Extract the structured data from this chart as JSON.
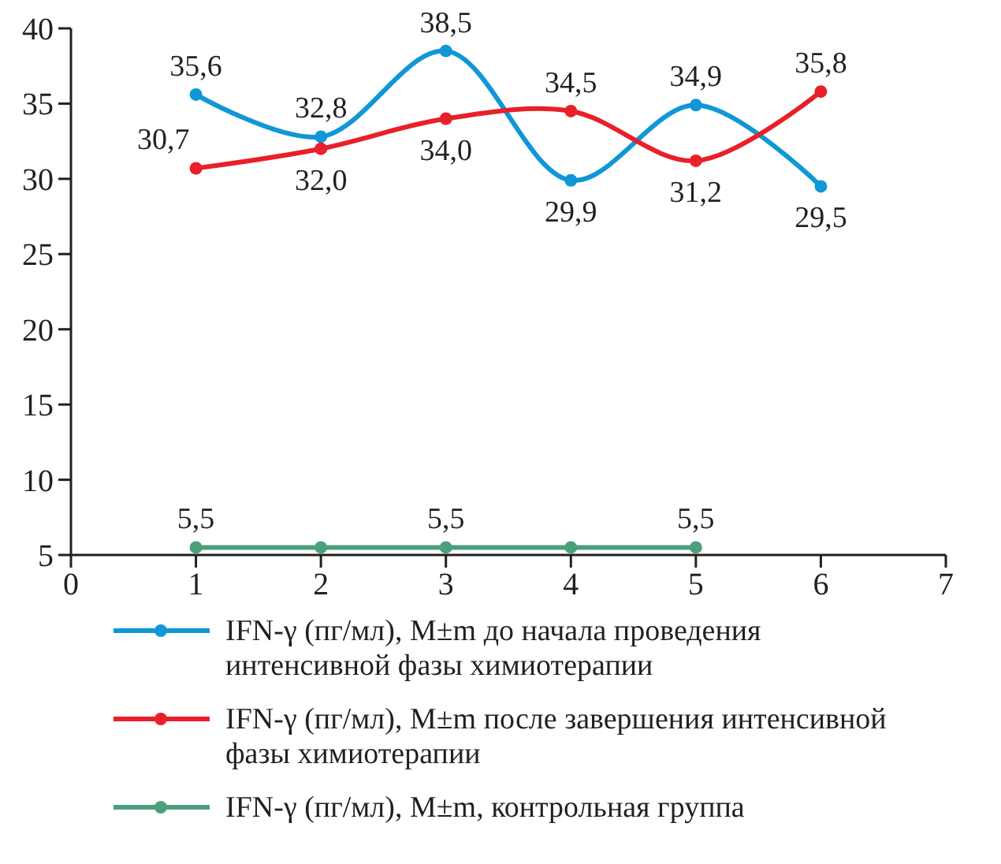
{
  "chart_data": {
    "type": "line",
    "x": [
      1,
      2,
      3,
      4,
      5,
      6
    ],
    "xlim": [
      0,
      7
    ],
    "xticks": [
      0,
      1,
      2,
      3,
      4,
      5,
      6,
      7
    ],
    "ylim": [
      5,
      40
    ],
    "yticks": [
      5,
      10,
      15,
      20,
      25,
      30,
      35,
      40
    ],
    "grid": false,
    "legend": "bottom",
    "marker": "circle",
    "line_style": "solid",
    "series": [
      {
        "name": "IFN-γ (пг/мл), M±m до начала проведения интенсивной фазы химиотерапии",
        "color": "#0f97d8",
        "values": [
          35.6,
          32.8,
          38.5,
          29.9,
          34.9,
          29.5
        ],
        "value_labels": [
          "35,6",
          "32,8",
          "38,5",
          "29,9",
          "34,9",
          "29,5"
        ]
      },
      {
        "name": "IFN-γ (пг/мл), M±m после завершения интенсивной фазы химиотерапии",
        "color": "#e8202a",
        "values": [
          30.7,
          32.0,
          34.0,
          34.5,
          31.2,
          35.8
        ],
        "value_labels": [
          "30,7",
          "32,0",
          "34,0",
          "34,5",
          "31,2",
          "35,8"
        ]
      },
      {
        "name": "IFN-γ (пг/мл), M±m, контрольная группа",
        "color": "#4c9f7d",
        "values": [
          5.5,
          5.5,
          5.5,
          5.5,
          5.5,
          null
        ],
        "value_labels": [
          "5,5",
          null,
          "5,5",
          null,
          "5,5",
          null
        ]
      }
    ]
  }
}
